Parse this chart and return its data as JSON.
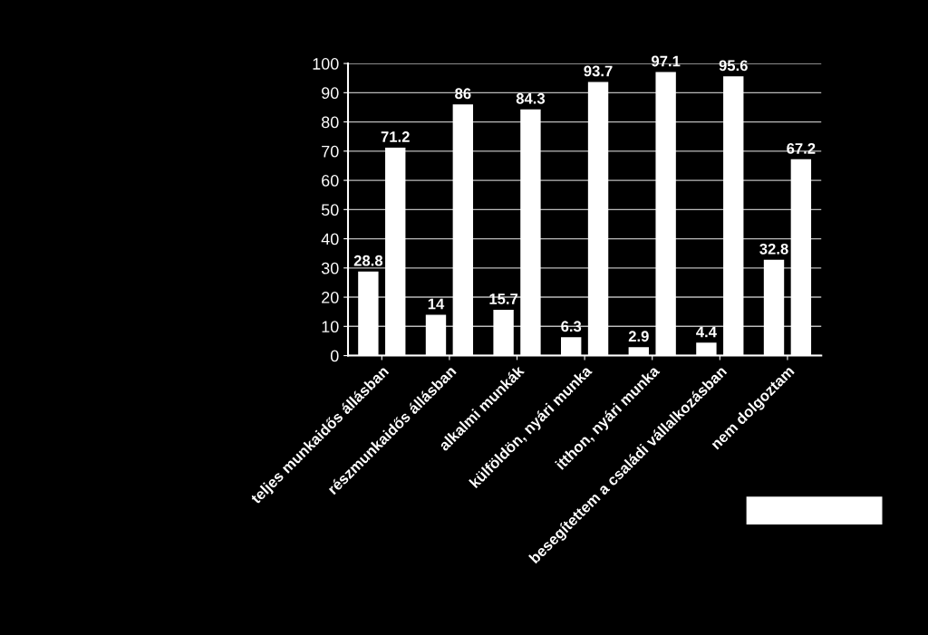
{
  "chart_data": {
    "type": "bar",
    "categories": [
      "teljes munkaidős állásban",
      "részmunkaidős állásban",
      "alkalmi munkák",
      "külföldön, nyári munka",
      "itthon, nyári munka",
      "besegítettem a családi vállalkozásban",
      "nem dolgoztam"
    ],
    "series": [
      {
        "color": "#ffffff",
        "values": [
          28.8,
          14,
          15.7,
          6.3,
          2.9,
          4.4,
          32.8
        ]
      },
      {
        "color": "#ffffff",
        "values": [
          71.2,
          86,
          84.3,
          93.7,
          97.1,
          95.6,
          67.2
        ]
      }
    ],
    "ylim": [
      0,
      100
    ],
    "yticks": [
      0,
      10,
      20,
      30,
      40,
      50,
      60,
      70,
      80,
      90,
      100
    ],
    "grid": "y",
    "data_labels": true
  }
}
